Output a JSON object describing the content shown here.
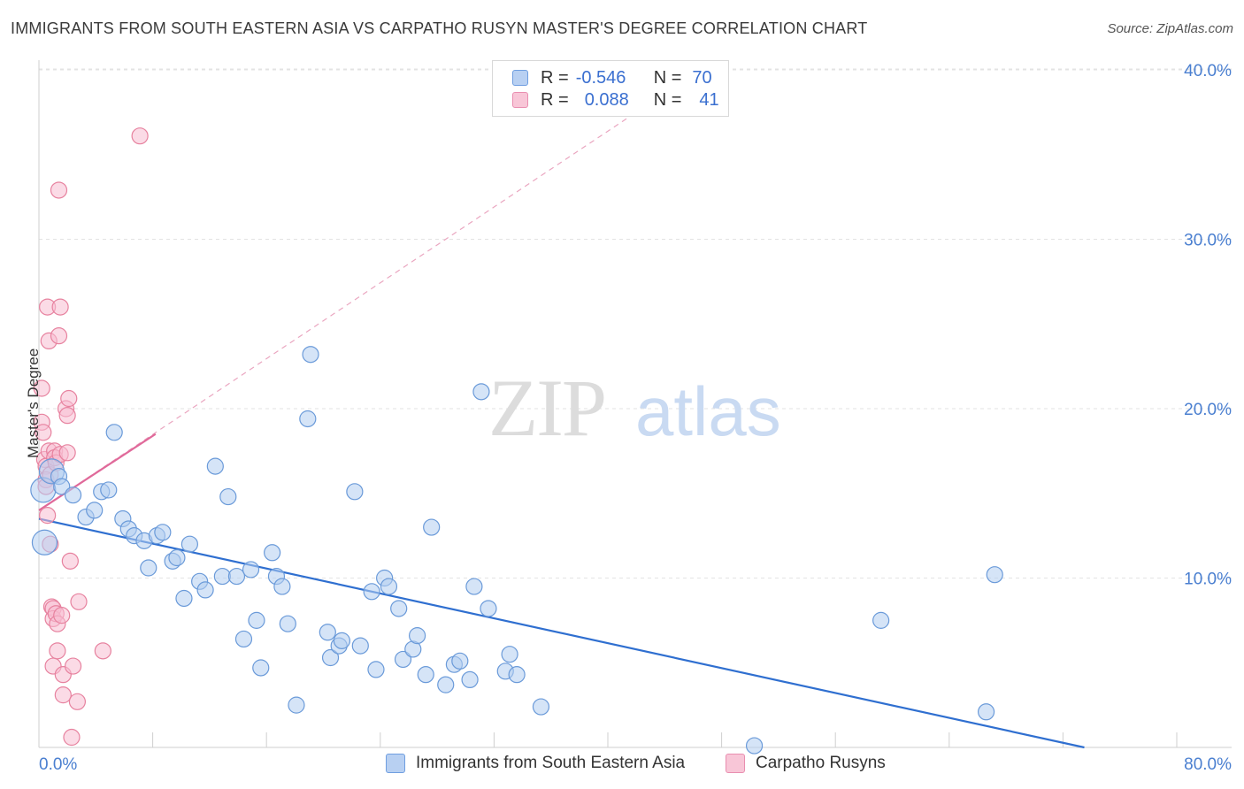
{
  "title": "IMMIGRANTS FROM SOUTH EASTERN ASIA VS CARPATHO RUSYN MASTER'S DEGREE CORRELATION CHART",
  "source": "Source: ZipAtlas.com",
  "watermark": {
    "zip": "ZIP",
    "atlas": "atlas"
  },
  "colors": {
    "blue": "#2f6fd0",
    "blue_fill": "#a9c7ee",
    "pink": "#e0699a",
    "pink_fill": "#f5b3c8",
    "tick_label": "#4a7fd0"
  },
  "legend": {
    "rows": [
      {
        "r_label": "R =",
        "r_value": "-0.546",
        "n_label": "N =",
        "n_value": "70"
      },
      {
        "r_label": "R =",
        "r_value": "0.088",
        "n_label": "N =",
        "n_value": "41"
      }
    ]
  },
  "chart_data": {
    "type": "scatter",
    "title": "IMMIGRANTS FROM SOUTH EASTERN ASIA VS CARPATHO RUSYN MASTER'S DEGREE CORRELATION CHART",
    "xlabel": "",
    "ylabel": "Master's Degree",
    "xlim": [
      0,
      80
    ],
    "ylim": [
      0,
      42
    ],
    "x_tick_labels": [
      "0.0%",
      "80.0%"
    ],
    "y_ticks": [
      10,
      20,
      30,
      40
    ],
    "y_tick_labels": [
      "10.0%",
      "20.0%",
      "30.0%",
      "40.0%"
    ],
    "grid": true,
    "legend_position": "top-center",
    "series": [
      {
        "name": "Immigrants from South Eastern Asia",
        "color": "#2f6fd0",
        "trend": {
          "x": [
            0,
            73.5
          ],
          "y": [
            13.5,
            0
          ]
        },
        "points": [
          [
            0.3,
            15.2
          ],
          [
            0.4,
            12.1
          ],
          [
            0.9,
            16.3
          ],
          [
            1.4,
            16.0
          ],
          [
            1.6,
            15.4
          ],
          [
            2.4,
            14.9
          ],
          [
            3.3,
            13.6
          ],
          [
            3.9,
            14.0
          ],
          [
            5.3,
            18.6
          ],
          [
            4.4,
            15.1
          ],
          [
            4.9,
            15.2
          ],
          [
            5.9,
            13.5
          ],
          [
            6.3,
            12.9
          ],
          [
            6.7,
            12.5
          ],
          [
            7.4,
            12.2
          ],
          [
            7.7,
            10.6
          ],
          [
            8.3,
            12.5
          ],
          [
            8.7,
            12.7
          ],
          [
            9.4,
            11.0
          ],
          [
            9.7,
            11.2
          ],
          [
            10.2,
            8.8
          ],
          [
            10.6,
            12.0
          ],
          [
            11.3,
            9.8
          ],
          [
            11.7,
            9.3
          ],
          [
            12.4,
            16.6
          ],
          [
            12.9,
            10.1
          ],
          [
            13.3,
            14.8
          ],
          [
            13.9,
            10.1
          ],
          [
            14.4,
            6.4
          ],
          [
            14.9,
            10.5
          ],
          [
            15.3,
            7.5
          ],
          [
            15.6,
            4.7
          ],
          [
            16.4,
            11.5
          ],
          [
            16.7,
            10.1
          ],
          [
            17.1,
            9.5
          ],
          [
            17.5,
            7.3
          ],
          [
            18.1,
            2.5
          ],
          [
            18.9,
            19.4
          ],
          [
            19.1,
            23.2
          ],
          [
            20.3,
            6.8
          ],
          [
            20.5,
            5.3
          ],
          [
            21.1,
            6.0
          ],
          [
            21.3,
            6.3
          ],
          [
            22.2,
            15.1
          ],
          [
            22.6,
            6.0
          ],
          [
            23.4,
            9.2
          ],
          [
            23.7,
            4.6
          ],
          [
            24.3,
            10.0
          ],
          [
            24.6,
            9.5
          ],
          [
            25.3,
            8.2
          ],
          [
            25.6,
            5.2
          ],
          [
            26.3,
            5.8
          ],
          [
            26.6,
            6.6
          ],
          [
            27.2,
            4.3
          ],
          [
            27.6,
            13.0
          ],
          [
            28.6,
            3.7
          ],
          [
            29.2,
            4.9
          ],
          [
            29.6,
            5.1
          ],
          [
            30.3,
            4.0
          ],
          [
            30.6,
            9.5
          ],
          [
            31.1,
            21.0
          ],
          [
            31.6,
            8.2
          ],
          [
            32.8,
            4.5
          ],
          [
            33.1,
            5.5
          ],
          [
            33.6,
            4.3
          ],
          [
            35.3,
            2.4
          ],
          [
            50.3,
            0.1
          ],
          [
            59.2,
            7.5
          ],
          [
            66.6,
            2.1
          ],
          [
            67.2,
            10.2
          ]
        ]
      },
      {
        "name": "Carpatho Rusyns",
        "color": "#e0699a",
        "trend": {
          "x": [
            0,
            8.2
          ],
          "y": [
            14.0,
            18.5
          ]
        },
        "trend_extended": {
          "x": [
            0,
            42
          ],
          "y": [
            14.0,
            37.5
          ]
        },
        "points": [
          [
            0.2,
            21.2
          ],
          [
            0.2,
            19.2
          ],
          [
            0.3,
            18.6
          ],
          [
            0.4,
            17.0
          ],
          [
            0.5,
            16.6
          ],
          [
            0.5,
            15.8
          ],
          [
            0.5,
            15.4
          ],
          [
            0.6,
            13.7
          ],
          [
            0.6,
            26.0
          ],
          [
            0.7,
            24.0
          ],
          [
            0.7,
            17.5
          ],
          [
            0.8,
            16.1
          ],
          [
            0.8,
            12.0
          ],
          [
            0.9,
            8.3
          ],
          [
            1.0,
            8.2
          ],
          [
            1.0,
            7.6
          ],
          [
            1.0,
            4.8
          ],
          [
            1.1,
            17.5
          ],
          [
            1.1,
            17.1
          ],
          [
            1.2,
            16.8
          ],
          [
            1.2,
            7.9
          ],
          [
            1.3,
            7.3
          ],
          [
            1.3,
            5.7
          ],
          [
            1.4,
            32.9
          ],
          [
            1.4,
            24.3
          ],
          [
            1.5,
            26.0
          ],
          [
            1.5,
            17.3
          ],
          [
            1.6,
            7.8
          ],
          [
            1.7,
            4.3
          ],
          [
            1.9,
            20.0
          ],
          [
            2.0,
            19.6
          ],
          [
            2.0,
            17.4
          ],
          [
            1.7,
            3.1
          ],
          [
            2.1,
            20.6
          ],
          [
            2.2,
            11.0
          ],
          [
            2.4,
            4.8
          ],
          [
            2.3,
            0.6
          ],
          [
            2.7,
            2.7
          ],
          [
            2.8,
            8.6
          ],
          [
            4.5,
            5.7
          ],
          [
            7.1,
            36.1
          ]
        ]
      }
    ]
  },
  "bottom_legend": [
    {
      "label": "Immigrants from South Eastern Asia"
    },
    {
      "label": "Carpatho Rusyns"
    }
  ]
}
